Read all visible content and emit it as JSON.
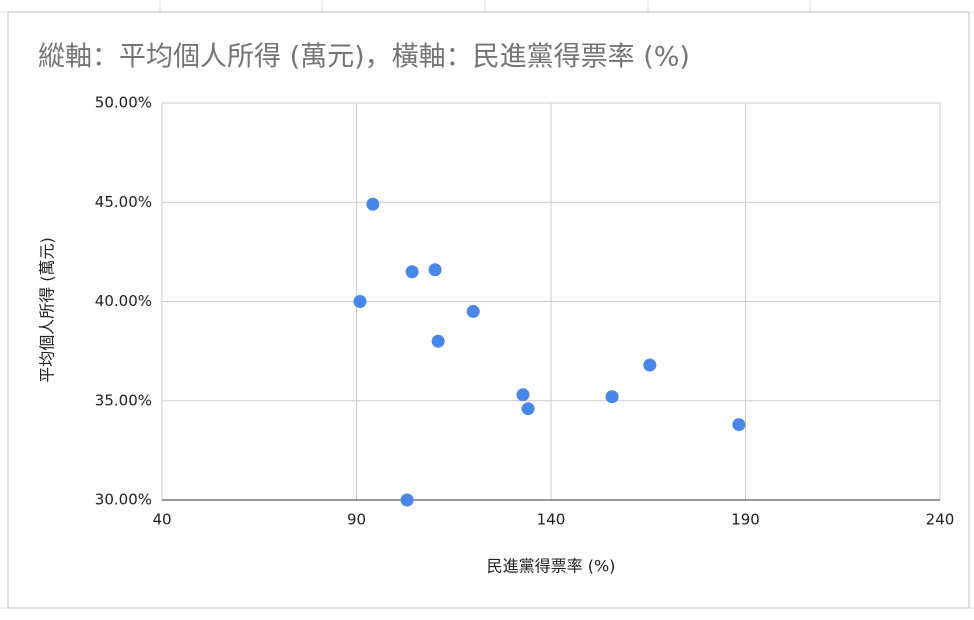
{
  "chart_data": {
    "type": "scatter",
    "title": "縱軸：平均個人所得 (萬元)，橫軸：民進黨得票率 (%)",
    "x_label": "民進黨得票率 (%)",
    "y_label": "平均個人所得 (萬元)",
    "color": "#4a86e8",
    "grid": true,
    "xlim": [
      40,
      240
    ],
    "xticks": [
      40,
      90,
      140,
      190,
      240
    ],
    "ylim": [
      30,
      50
    ],
    "yticks": [
      {
        "value": 30,
        "label": "30.00%"
      },
      {
        "value": 35,
        "label": "35.00%"
      },
      {
        "value": 40,
        "label": "40.00%"
      },
      {
        "value": 45,
        "label": "45.00%"
      },
      {
        "value": 50,
        "label": "50.00%"
      }
    ],
    "series": [
      {
        "x": [
          94.2,
          104.3,
          110.2,
          90.9,
          120.0,
          111.0,
          132.8,
          134.1,
          155.7,
          165.4,
          188.3,
          103.0
        ],
        "values": [
          44.9,
          41.5,
          41.6,
          40.0,
          39.5,
          38.0,
          35.3,
          34.6,
          35.2,
          36.8,
          33.8,
          30.0
        ]
      }
    ]
  }
}
